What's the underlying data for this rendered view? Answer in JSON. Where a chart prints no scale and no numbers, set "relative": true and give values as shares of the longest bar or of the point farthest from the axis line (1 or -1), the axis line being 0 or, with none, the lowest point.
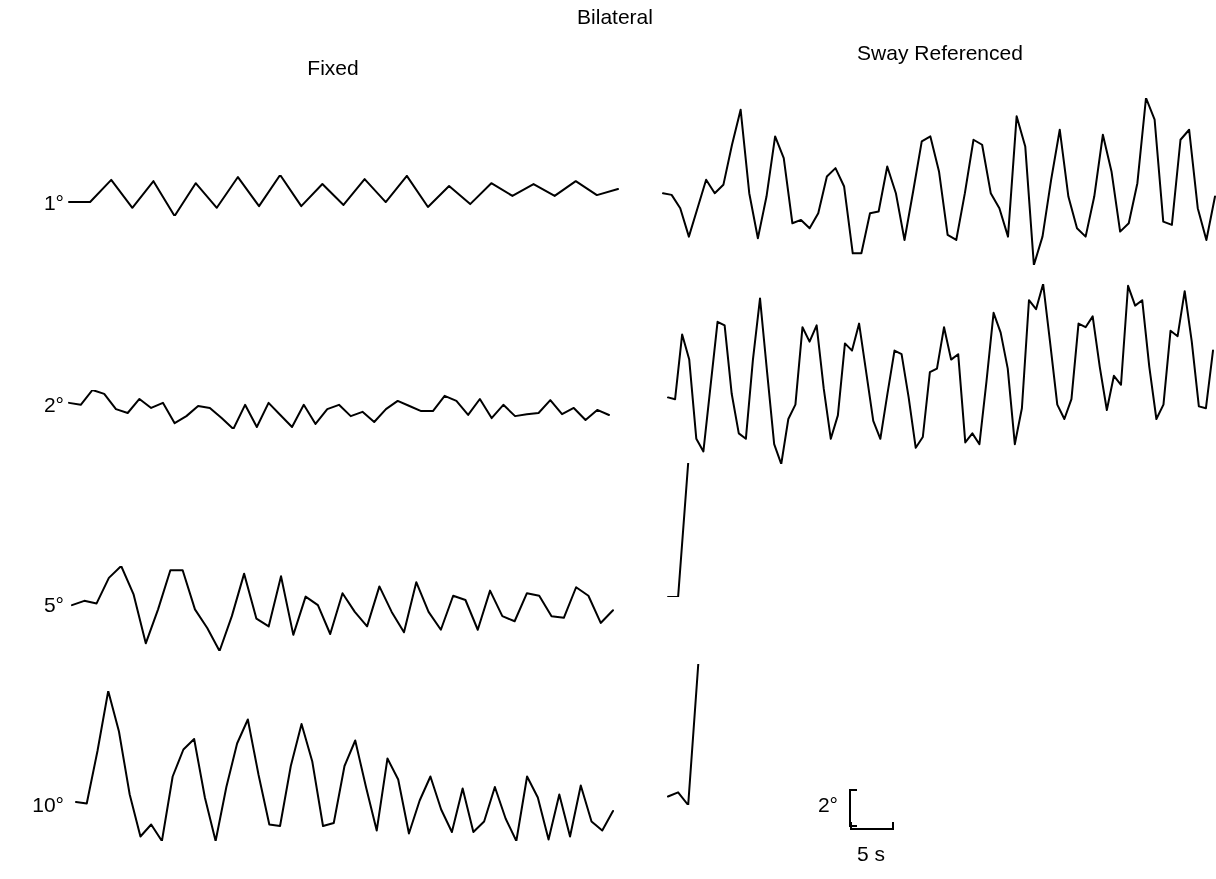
{
  "chart_data": [
    {
      "type": "line",
      "title": "Bilateral",
      "subtitle": "Fixed",
      "ylabel": "1°",
      "relative": true,
      "color": "#000000",
      "categories": [
        null,
        null,
        null,
        null,
        null,
        null,
        null,
        null,
        null,
        null,
        null,
        null,
        null,
        null,
        null,
        null,
        null,
        null,
        null,
        null,
        null,
        null,
        null,
        null,
        null,
        null,
        null
      ],
      "values": [
        0.34,
        0.34,
        0.88,
        0.2,
        0.85,
        0,
        0.8,
        0.2,
        0.95,
        0.24,
        1,
        0.24,
        0.78,
        0.27,
        0.9,
        0.34,
        0.98,
        0.22,
        0.73,
        0.29,
        0.8,
        0.49,
        0.78,
        0.49,
        0.85,
        0.51,
        0.66
      ]
    },
    {
      "type": "line",
      "subtitle": "Sway Referenced",
      "relative": true,
      "color": "#000000",
      "categories": [
        null,
        null,
        null,
        null,
        null,
        null,
        null,
        null,
        null,
        null,
        null,
        null,
        null,
        null,
        null,
        null,
        null,
        null,
        null,
        null,
        null,
        null,
        null,
        null,
        null,
        null,
        null,
        null,
        null,
        null,
        null,
        null,
        null,
        null,
        null,
        null,
        null,
        null,
        null,
        null,
        null,
        null,
        null,
        null,
        null,
        null,
        null,
        null,
        null,
        null,
        null,
        null,
        null,
        null,
        null,
        null,
        null,
        null,
        null,
        null,
        null,
        null,
        null,
        null,
        null
      ],
      "values": [
        0.43,
        0.42,
        0.34,
        0.17,
        0.34,
        0.51,
        0.43,
        0.48,
        0.72,
        0.93,
        0.43,
        0.16,
        0.41,
        0.77,
        0.64,
        0.25,
        0.27,
        0.22,
        0.31,
        0.53,
        0.58,
        0.47,
        0.07,
        0.07,
        0.31,
        0.32,
        0.59,
        0.43,
        0.15,
        0.44,
        0.74,
        0.77,
        0.56,
        0.18,
        0.15,
        0.43,
        0.75,
        0.72,
        0.43,
        0.34,
        0.17,
        0.89,
        0.71,
        0,
        0.17,
        0.51,
        0.81,
        0.41,
        0.22,
        0.17,
        0.41,
        0.78,
        0.56,
        0.2,
        0.25,
        0.49,
        1,
        0.87,
        0.26,
        0.24,
        0.75,
        0.81,
        0.34,
        0.15,
        0.41
      ]
    },
    {
      "type": "line",
      "ylabel": "2°",
      "relative": true,
      "color": "#000000",
      "categories": [
        null,
        null,
        null,
        null,
        null,
        null,
        null,
        null,
        null,
        null,
        null,
        null,
        null,
        null,
        null,
        null,
        null,
        null,
        null,
        null,
        null,
        null,
        null,
        null,
        null,
        null,
        null,
        null,
        null,
        null,
        null,
        null,
        null,
        null,
        null,
        null,
        null,
        null,
        null,
        null,
        null,
        null,
        null,
        null,
        null,
        null,
        null
      ],
      "values": [
        0.67,
        0.62,
        1,
        0.9,
        0.51,
        0.41,
        0.77,
        0.54,
        0.67,
        0.15,
        0.33,
        0.59,
        0.54,
        0.28,
        0,
        0.62,
        0.05,
        0.67,
        0.36,
        0.05,
        0.62,
        0.13,
        0.51,
        0.62,
        0.33,
        0.44,
        0.18,
        0.51,
        0.72,
        0.59,
        0.46,
        0.46,
        0.85,
        0.72,
        0.36,
        0.77,
        0.28,
        0.62,
        0.33,
        0.38,
        0.41,
        0.74,
        0.38,
        0.54,
        0.23,
        0.49,
        0.36
      ]
    },
    {
      "type": "line",
      "relative": true,
      "color": "#000000",
      "categories": [
        null,
        null,
        null,
        null,
        null,
        null,
        null,
        null,
        null,
        null,
        null,
        null,
        null,
        null,
        null,
        null,
        null,
        null,
        null,
        null,
        null,
        null,
        null,
        null,
        null,
        null,
        null,
        null,
        null,
        null,
        null,
        null,
        null,
        null,
        null,
        null,
        null,
        null,
        null,
        null,
        null,
        null,
        null,
        null,
        null,
        null,
        null,
        null,
        null,
        null,
        null,
        null,
        null,
        null,
        null,
        null,
        null,
        null,
        null,
        null,
        null,
        null,
        null,
        null,
        null,
        null,
        null,
        null,
        null,
        null,
        null,
        null,
        null,
        null,
        null,
        null,
        null,
        null
      ],
      "values": [
        0.37,
        0.36,
        0.72,
        0.58,
        0.14,
        0.07,
        0.43,
        0.79,
        0.77,
        0.39,
        0.17,
        0.14,
        0.58,
        0.92,
        0.51,
        0.11,
        0,
        0.25,
        0.33,
        0.76,
        0.68,
        0.77,
        0.42,
        0.14,
        0.27,
        0.67,
        0.63,
        0.78,
        0.51,
        0.24,
        0.14,
        0.39,
        0.63,
        0.61,
        0.37,
        0.09,
        0.15,
        0.51,
        0.53,
        0.76,
        0.58,
        0.61,
        0.12,
        0.17,
        0.11,
        0.46,
        0.84,
        0.73,
        0.53,
        0.11,
        0.31,
        0.91,
        0.86,
        1,
        0.67,
        0.33,
        0.25,
        0.36,
        0.78,
        0.76,
        0.82,
        0.54,
        0.3,
        0.49,
        0.44,
        0.99,
        0.88,
        0.91,
        0.54,
        0.25,
        0.33,
        0.74,
        0.71,
        0.96,
        0.68,
        0.32,
        0.31,
        0.63
      ]
    },
    {
      "type": "line",
      "ylabel": "5°",
      "relative": true,
      "color": "#000000",
      "categories": [
        null,
        null,
        null,
        null,
        null,
        null,
        null,
        null,
        null,
        null,
        null,
        null,
        null,
        null,
        null,
        null,
        null,
        null,
        null,
        null,
        null,
        null,
        null,
        null,
        null,
        null,
        null,
        null,
        null,
        null,
        null,
        null,
        null,
        null,
        null,
        null,
        null,
        null,
        null,
        null,
        null,
        null,
        null,
        null,
        null
      ],
      "values": [
        0.54,
        0.59,
        0.56,
        0.86,
        1,
        0.67,
        0.09,
        0.49,
        0.95,
        0.95,
        0.49,
        0.27,
        0,
        0.41,
        0.91,
        0.38,
        0.29,
        0.88,
        0.19,
        0.64,
        0.54,
        0.2,
        0.68,
        0.46,
        0.29,
        0.76,
        0.46,
        0.22,
        0.81,
        0.46,
        0.25,
        0.65,
        0.6,
        0.25,
        0.71,
        0.41,
        0.35,
        0.68,
        0.65,
        0.41,
        0.39,
        0.75,
        0.65,
        0.33,
        0.48
      ]
    },
    {
      "type": "line",
      "relative": true,
      "color": "#000000",
      "categories": [
        null,
        null,
        null,
        null,
        null,
        null,
        null,
        null,
        null,
        null,
        null,
        null,
        null,
        null,
        null,
        null,
        null,
        null,
        null,
        null,
        null,
        null,
        null,
        null,
        null,
        null,
        null,
        null,
        null,
        null,
        null,
        null,
        null,
        null,
        null,
        null,
        null,
        null,
        null,
        null,
        null,
        null,
        null,
        null,
        null,
        null,
        null,
        null,
        null,
        null,
        null,
        null,
        null,
        null,
        null
      ],
      "values": [
        0,
        0,
        1,
        null,
        null,
        null,
        null,
        null,
        null,
        null,
        null,
        null,
        null,
        null,
        null,
        null,
        null,
        null,
        null,
        null,
        null,
        null,
        null,
        null,
        null,
        null,
        null,
        null,
        null,
        null,
        null,
        null,
        null,
        null,
        null,
        null,
        null,
        null,
        null,
        null,
        null,
        null,
        null,
        null,
        null,
        null,
        null,
        null,
        null,
        null,
        null,
        null,
        null,
        null,
        null
      ]
    },
    {
      "type": "line",
      "ylabel": "10°",
      "relative": true,
      "color": "#000000",
      "categories": [
        null,
        null,
        null,
        null,
        null,
        null,
        null,
        null,
        null,
        null,
        null,
        null,
        null,
        null,
        null,
        null,
        null,
        null,
        null,
        null,
        null,
        null,
        null,
        null,
        null,
        null,
        null,
        null,
        null,
        null,
        null,
        null,
        null,
        null,
        null,
        null,
        null,
        null,
        null,
        null,
        null,
        null,
        null,
        null,
        null,
        null,
        null,
        null,
        null,
        null,
        null
      ],
      "values": [
        0.26,
        0.25,
        0.6,
        1,
        0.73,
        0.31,
        0.03,
        0.11,
        0,
        0.43,
        0.61,
        0.68,
        0.29,
        0,
        0.36,
        0.65,
        0.81,
        0.44,
        0.11,
        0.1,
        0.5,
        0.78,
        0.53,
        0.1,
        0.12,
        0.5,
        0.67,
        0.36,
        0.07,
        0.55,
        0.41,
        0.05,
        0.27,
        0.43,
        0.21,
        0.06,
        0.35,
        0.06,
        0.13,
        0.36,
        0.15,
        0,
        0.43,
        0.29,
        0.01,
        0.31,
        0.03,
        0.37,
        0.13,
        0.07,
        0.2
      ]
    },
    {
      "type": "line",
      "relative": true,
      "color": "#000000",
      "annotations": [
        "2°",
        "5 s"
      ],
      "categories": [
        null,
        null,
        null,
        null,
        null,
        null,
        null,
        null,
        null,
        null,
        null,
        null,
        null,
        null,
        null,
        null,
        null,
        null,
        null,
        null,
        null,
        null,
        null,
        null,
        null,
        null,
        null,
        null,
        null,
        null,
        null,
        null,
        null,
        null,
        null,
        null,
        null,
        null,
        null,
        null,
        null,
        null,
        null,
        null,
        null,
        null,
        null,
        null,
        null,
        null,
        null,
        null,
        null,
        null,
        null
      ],
      "values": [
        0.06,
        0.09,
        0,
        1,
        null,
        null,
        null,
        null,
        null,
        null,
        null,
        null,
        null,
        null,
        null,
        null,
        null,
        null,
        null,
        null,
        null,
        null,
        null,
        null,
        null,
        null,
        null,
        null,
        null,
        null,
        null,
        null,
        null,
        null,
        null,
        null,
        null,
        null,
        null,
        null,
        null,
        null,
        null,
        null,
        null,
        null,
        null,
        null,
        null,
        null,
        null,
        null,
        null,
        null,
        null
      ]
    }
  ]
}
